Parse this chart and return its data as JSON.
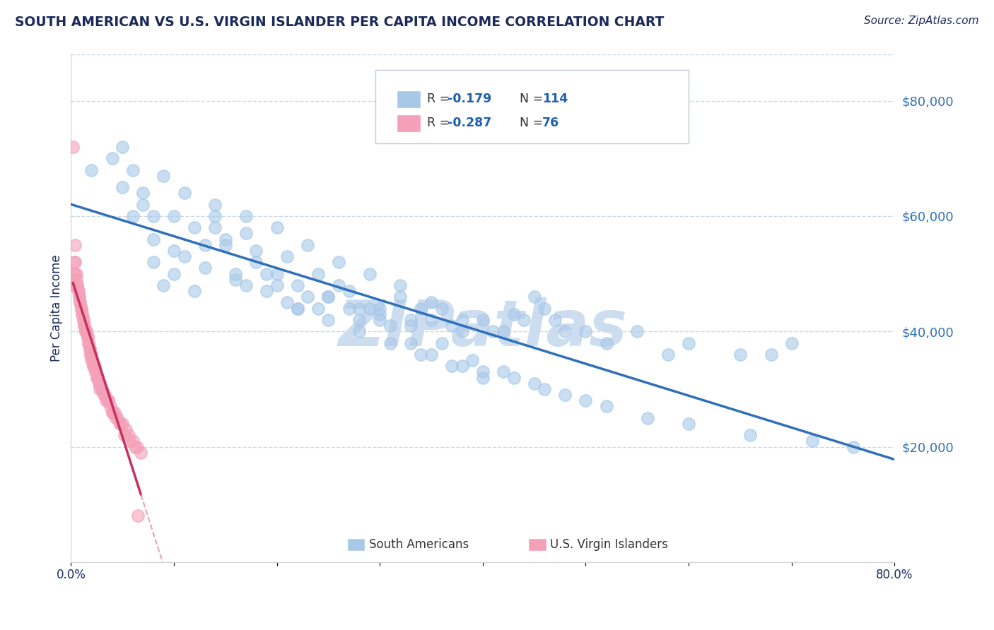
{
  "title": "SOUTH AMERICAN VS U.S. VIRGIN ISLANDER PER CAPITA INCOME CORRELATION CHART",
  "source": "Source: ZipAtlas.com",
  "ylabel": "Per Capita Income",
  "xlim": [
    0.0,
    0.8
  ],
  "ylim": [
    0,
    88000
  ],
  "yticks": [
    20000,
    40000,
    60000,
    80000
  ],
  "ytick_labels": [
    "$20,000",
    "$40,000",
    "$60,000",
    "$80,000"
  ],
  "xtick_positions": [
    0.0,
    0.1,
    0.2,
    0.3,
    0.4,
    0.5,
    0.6,
    0.7,
    0.8
  ],
  "xtick_labels": [
    "0.0%",
    "",
    "",
    "",
    "",
    "",
    "",
    "",
    "80.0%"
  ],
  "blue_color": "#a8c8e8",
  "pink_color": "#f4a0b8",
  "blue_line_color": "#3070b8",
  "pink_line_color": "#c83060",
  "pink_line_dashed_color": "#e8a0b8",
  "watermark": "ZIPatlas",
  "watermark_color": "#ccddf0",
  "title_color": "#1a2a5a",
  "source_color": "#1a2a5a",
  "axis_label_color": "#1a2a5a",
  "legend_text_color": "#333333",
  "legend_value_color": "#2060b0",
  "grid_color": "#c8d8e8",
  "ytick_color": "#3070b8",
  "sa_x": [
    0.02,
    0.04,
    0.05,
    0.06,
    0.07,
    0.08,
    0.09,
    0.1,
    0.11,
    0.12,
    0.13,
    0.14,
    0.15,
    0.16,
    0.17,
    0.18,
    0.19,
    0.2,
    0.21,
    0.22,
    0.23,
    0.24,
    0.25,
    0.26,
    0.27,
    0.28,
    0.29,
    0.3,
    0.31,
    0.32,
    0.33,
    0.34,
    0.35,
    0.36,
    0.37,
    0.38,
    0.4,
    0.42,
    0.43,
    0.44,
    0.45,
    0.46,
    0.47,
    0.48,
    0.5,
    0.52,
    0.55,
    0.58,
    0.6,
    0.65,
    0.68,
    0.7,
    0.1,
    0.12,
    0.15,
    0.18,
    0.2,
    0.22,
    0.25,
    0.28,
    0.3,
    0.33,
    0.35,
    0.38,
    0.4,
    0.43,
    0.46,
    0.5,
    0.08,
    0.1,
    0.13,
    0.16,
    0.19,
    0.22,
    0.25,
    0.28,
    0.31,
    0.34,
    0.37,
    0.4,
    0.14,
    0.17,
    0.2,
    0.23,
    0.26,
    0.29,
    0.32,
    0.35,
    0.38,
    0.41,
    0.09,
    0.11,
    0.14,
    0.17,
    0.21,
    0.24,
    0.27,
    0.3,
    0.33,
    0.36,
    0.39,
    0.42,
    0.45,
    0.48,
    0.52,
    0.56,
    0.6,
    0.66,
    0.72,
    0.76,
    0.05,
    0.06,
    0.07,
    0.08
  ],
  "sa_y": [
    68000,
    70000,
    65000,
    60000,
    62000,
    52000,
    48000,
    50000,
    53000,
    47000,
    55000,
    58000,
    55000,
    50000,
    48000,
    52000,
    50000,
    48000,
    45000,
    44000,
    46000,
    44000,
    46000,
    48000,
    44000,
    42000,
    44000,
    43000,
    41000,
    46000,
    42000,
    44000,
    42000,
    44000,
    41000,
    40000,
    42000,
    40000,
    43000,
    42000,
    46000,
    44000,
    42000,
    40000,
    40000,
    38000,
    40000,
    36000,
    38000,
    36000,
    36000,
    38000,
    60000,
    58000,
    56000,
    54000,
    50000,
    48000,
    46000,
    44000,
    42000,
    38000,
    36000,
    34000,
    33000,
    32000,
    30000,
    28000,
    56000,
    54000,
    51000,
    49000,
    47000,
    44000,
    42000,
    40000,
    38000,
    36000,
    34000,
    32000,
    62000,
    60000,
    58000,
    55000,
    52000,
    50000,
    48000,
    45000,
    42000,
    40000,
    67000,
    64000,
    60000,
    57000,
    53000,
    50000,
    47000,
    44000,
    41000,
    38000,
    35000,
    33000,
    31000,
    29000,
    27000,
    25000,
    24000,
    22000,
    21000,
    20000,
    72000,
    68000,
    64000,
    60000
  ],
  "vi_x": [
    0.002,
    0.003,
    0.004,
    0.005,
    0.006,
    0.007,
    0.008,
    0.009,
    0.01,
    0.011,
    0.012,
    0.013,
    0.014,
    0.015,
    0.016,
    0.017,
    0.018,
    0.019,
    0.02,
    0.021,
    0.022,
    0.023,
    0.024,
    0.025,
    0.026,
    0.027,
    0.028,
    0.03,
    0.032,
    0.034,
    0.036,
    0.038,
    0.04,
    0.042,
    0.045,
    0.048,
    0.05,
    0.053,
    0.056,
    0.06,
    0.064,
    0.068,
    0.003,
    0.004,
    0.005,
    0.006,
    0.007,
    0.008,
    0.009,
    0.01,
    0.011,
    0.012,
    0.013,
    0.014,
    0.015,
    0.016,
    0.017,
    0.018,
    0.019,
    0.02,
    0.022,
    0.024,
    0.026,
    0.028,
    0.03,
    0.033,
    0.036,
    0.04,
    0.044,
    0.048,
    0.052,
    0.057,
    0.062,
    0.002,
    0.004,
    0.065
  ],
  "vi_y": [
    48000,
    50000,
    52000,
    50000,
    48000,
    47000,
    46000,
    45000,
    44000,
    43000,
    42000,
    41000,
    40000,
    40000,
    39000,
    38000,
    37000,
    36000,
    36000,
    35000,
    34000,
    34000,
    33000,
    32000,
    32000,
    31000,
    30000,
    30000,
    29000,
    28000,
    28000,
    27000,
    26000,
    26000,
    25000,
    24000,
    24000,
    23000,
    22000,
    21000,
    20000,
    19000,
    52000,
    50000,
    49000,
    48000,
    47000,
    46000,
    45000,
    44000,
    43000,
    42000,
    41000,
    40000,
    40000,
    39000,
    38000,
    37000,
    36000,
    35000,
    34000,
    33000,
    32000,
    31000,
    30000,
    29000,
    28000,
    26000,
    25000,
    24000,
    22000,
    21000,
    20000,
    72000,
    55000,
    8000
  ]
}
